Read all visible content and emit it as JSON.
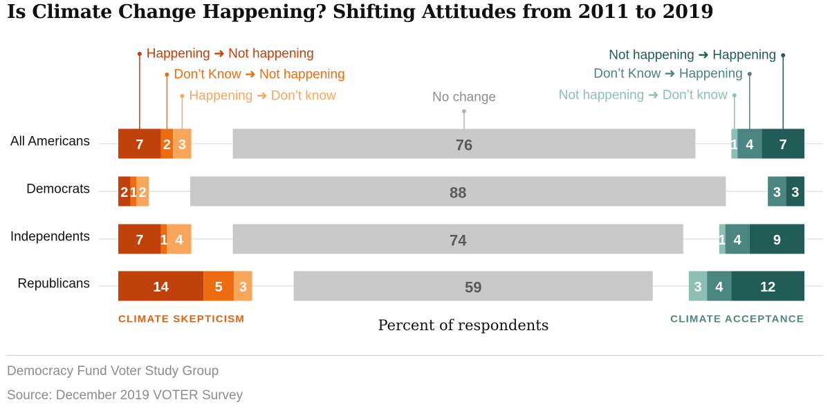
{
  "title": "Is Climate Change Happening? Shifting Attitudes from 2011 to 2019",
  "footer": {
    "line1": "Democracy Fund Voter Study Group",
    "line2": "Source: December 2019 VOTER Survey"
  },
  "chart_data": {
    "type": "bar",
    "stacked": true,
    "xlabel": "Percent of respondents",
    "categories": [
      "All Americans",
      "Democrats",
      "Independents",
      "Republicans"
    ],
    "group_labels": {
      "left": "CLIMATE SKEPTICISM",
      "right": "CLIMATE ACCEPTANCE"
    },
    "colors": {
      "happening_to_not": "#c0410a",
      "dontknow_to_not": "#ee6c10",
      "happening_to_dontknow": "#f9a65a",
      "no_change": "#c9c9c9",
      "not_to_dontknow": "#8ebfb5",
      "dontknow_to_happening": "#4a8580",
      "not_to_happening": "#215c56",
      "left_group_label": "#e2620f",
      "right_group_label": "#4f8781"
    },
    "series": [
      {
        "name": "Happening ➜ Not happening",
        "group": "skepticism",
        "color_key": "happening_to_not",
        "values": [
          7,
          2,
          7,
          14
        ]
      },
      {
        "name": "Don’t Know ➜ Not happening",
        "group": "skepticism",
        "color_key": "dontknow_to_not",
        "values": [
          2,
          1,
          1,
          5
        ]
      },
      {
        "name": "Happening ➜ Don’t know",
        "group": "skepticism",
        "color_key": "happening_to_dontknow",
        "values": [
          3,
          2,
          4,
          3
        ]
      },
      {
        "name": "No change",
        "group": "none",
        "color_key": "no_change",
        "values": [
          76,
          88,
          74,
          59
        ]
      },
      {
        "name": "Not happening ➜ Don’t know",
        "group": "acceptance",
        "color_key": "not_to_dontknow",
        "values": [
          1,
          0,
          1,
          3
        ]
      },
      {
        "name": "Don’t Know ➜ Happening",
        "group": "acceptance",
        "color_key": "dontknow_to_happening",
        "values": [
          4,
          3,
          4,
          4
        ]
      },
      {
        "name": "Not happening ➜ Happening",
        "group": "acceptance",
        "color_key": "not_to_happening",
        "values": [
          7,
          3,
          9,
          12
        ]
      }
    ]
  }
}
